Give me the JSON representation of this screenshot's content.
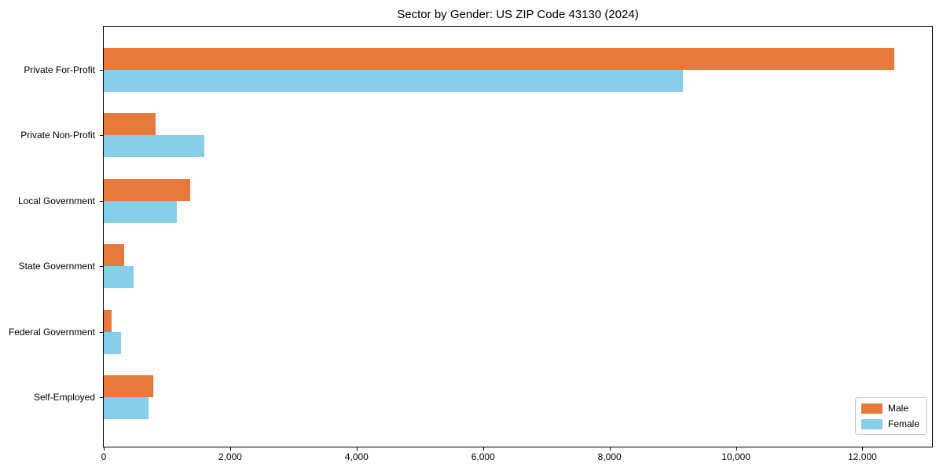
{
  "chart_data": {
    "type": "bar",
    "orientation": "horizontal",
    "title": "Sector by Gender: US ZIP Code 43130 (2024)",
    "categories": [
      "Private For-Profit",
      "Private Non-Profit",
      "Local Government",
      "State Government",
      "Federal Government",
      "Self-Employed"
    ],
    "series": [
      {
        "name": "Male",
        "color": "#E8793D",
        "values": [
          12500,
          820,
          1370,
          320,
          120,
          780
        ]
      },
      {
        "name": "Female",
        "color": "#87CEEB",
        "values": [
          9160,
          1590,
          1160,
          470,
          270,
          710
        ]
      }
    ],
    "xlabel": "",
    "ylabel": "",
    "xlim": [
      0,
      13100
    ],
    "x_ticks": [
      0,
      2000,
      4000,
      6000,
      8000,
      10000,
      12000
    ],
    "x_tick_labels": [
      "0",
      "2,000",
      "4,000",
      "6,000",
      "8,000",
      "10,000",
      "12,000"
    ],
    "grid": false,
    "legend_position": "lower right"
  },
  "colors": {
    "axis": "#000000",
    "background": "#FFFFFF",
    "legend_border": "#C8C8C8"
  }
}
